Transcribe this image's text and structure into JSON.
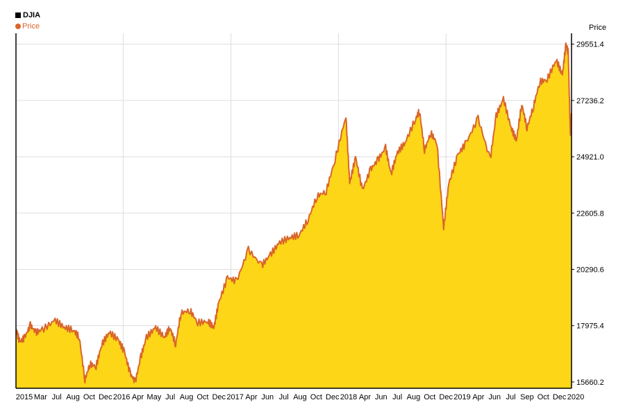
{
  "chart_data": {
    "type": "area",
    "legend": {
      "title": "DJIA",
      "series_label": "Price"
    },
    "ylabel": "Price",
    "ylim": [
      15400,
      30000
    ],
    "y_ticks": [
      "29551.4",
      "27236.2",
      "24921.0",
      "22605.8",
      "20290.6",
      "17975.4",
      "15660.2"
    ],
    "x_ticks": [
      "2015",
      "Mar",
      "Jul",
      "Aug",
      "Oct",
      "Dec",
      "2016",
      "Apr",
      "May",
      "Jul",
      "Aug",
      "Oct",
      "Dec",
      "2017",
      "Apr",
      "Jun",
      "Jul",
      "Aug",
      "Oct",
      "Dec",
      "2018",
      "Apr",
      "Jun",
      "Jul",
      "Aug",
      "Oct",
      "Dec",
      "2019",
      "Apr",
      "Jun",
      "Jul",
      "Sep",
      "Oct",
      "Dec",
      "2020"
    ],
    "grid": true,
    "colors": {
      "fill": "#fcd617",
      "line": "#d9652a",
      "grid": "#dddddd"
    },
    "series": [
      {
        "name": "Price",
        "points": [
          [
            "2015-01-02",
            17832
          ],
          [
            "2015-01-15",
            17300
          ],
          [
            "2015-02-01",
            17500
          ],
          [
            "2015-02-20",
            18000
          ],
          [
            "2015-03-10",
            17700
          ],
          [
            "2015-04-01",
            17800
          ],
          [
            "2015-05-15",
            18200
          ],
          [
            "2015-06-15",
            17900
          ],
          [
            "2015-07-15",
            17800
          ],
          [
            "2015-08-05",
            17500
          ],
          [
            "2015-08-24",
            15750
          ],
          [
            "2015-09-10",
            16400
          ],
          [
            "2015-10-01",
            16300
          ],
          [
            "2015-10-20",
            17200
          ],
          [
            "2015-11-15",
            17700
          ],
          [
            "2015-12-15",
            17400
          ],
          [
            "2016-01-05",
            16900
          ],
          [
            "2016-01-25",
            16000
          ],
          [
            "2016-02-11",
            15660
          ],
          [
            "2016-03-01",
            16700
          ],
          [
            "2016-03-20",
            17500
          ],
          [
            "2016-04-20",
            17900
          ],
          [
            "2016-05-20",
            17500
          ],
          [
            "2016-06-08",
            17900
          ],
          [
            "2016-06-27",
            17200
          ],
          [
            "2016-07-15",
            18500
          ],
          [
            "2016-08-15",
            18600
          ],
          [
            "2016-09-10",
            18100
          ],
          [
            "2016-10-15",
            18150
          ],
          [
            "2016-11-04",
            17900
          ],
          [
            "2016-11-20",
            18900
          ],
          [
            "2016-12-20",
            19950
          ],
          [
            "2017-01-20",
            19800
          ],
          [
            "2017-03-01",
            21100
          ],
          [
            "2017-04-15",
            20450
          ],
          [
            "2017-05-15",
            20900
          ],
          [
            "2017-06-15",
            21400
          ],
          [
            "2017-07-20",
            21600
          ],
          [
            "2017-08-20",
            21700
          ],
          [
            "2017-09-20",
            22350
          ],
          [
            "2017-10-20",
            23300
          ],
          [
            "2017-11-20",
            23500
          ],
          [
            "2017-12-20",
            24800
          ],
          [
            "2018-01-26",
            26600
          ],
          [
            "2018-02-08",
            23850
          ],
          [
            "2018-02-28",
            24900
          ],
          [
            "2018-03-23",
            23550
          ],
          [
            "2018-04-20",
            24400
          ],
          [
            "2018-05-15",
            24800
          ],
          [
            "2018-06-10",
            25300
          ],
          [
            "2018-06-28",
            24200
          ],
          [
            "2018-07-20",
            25100
          ],
          [
            "2018-08-15",
            25500
          ],
          [
            "2018-09-20",
            26500
          ],
          [
            "2018-10-03",
            26800
          ],
          [
            "2018-10-20",
            25200
          ],
          [
            "2018-11-10",
            25900
          ],
          [
            "2018-12-01",
            25500
          ],
          [
            "2018-12-24",
            22000
          ],
          [
            "2019-01-10",
            23800
          ],
          [
            "2019-02-10",
            25000
          ],
          [
            "2019-03-10",
            25500
          ],
          [
            "2019-04-20",
            26500
          ],
          [
            "2019-05-31",
            24800
          ],
          [
            "2019-06-20",
            26600
          ],
          [
            "2019-07-15",
            27300
          ],
          [
            "2019-08-10",
            26100
          ],
          [
            "2019-08-28",
            25600
          ],
          [
            "2019-09-15",
            27100
          ],
          [
            "2019-10-03",
            26100
          ],
          [
            "2019-10-25",
            27000
          ],
          [
            "2019-11-15",
            28000
          ],
          [
            "2019-12-10",
            28100
          ],
          [
            "2020-01-10",
            28900
          ],
          [
            "2020-01-31",
            28300
          ],
          [
            "2020-02-12",
            29551
          ],
          [
            "2020-02-20",
            29200
          ],
          [
            "2020-02-27",
            25800
          ],
          [
            "2020-03-02",
            26700
          ]
        ]
      }
    ]
  }
}
